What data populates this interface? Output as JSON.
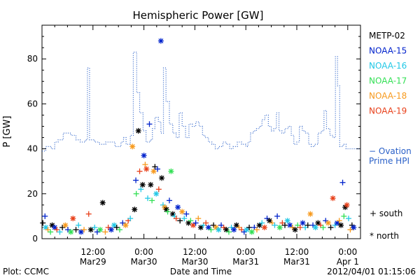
{
  "chart_data": {
    "type": "scatter",
    "title": "Hemispheric Power [GW]",
    "xlabel": "Date and Time",
    "ylabel": "P [GW]",
    "footer_left": "Plot: CCMC",
    "footer_right": "2012/04/01 01:15:06",
    "x_ticks": [
      {
        "t": 12,
        "top": "12:00",
        "bottom": "Mar29"
      },
      {
        "t": 24,
        "top": "0:00",
        "bottom": "Mar30"
      },
      {
        "t": 36,
        "top": "12:00",
        "bottom": "Mar30"
      },
      {
        "t": 48,
        "top": "0:00",
        "bottom": "Mar31"
      },
      {
        "t": 60,
        "top": "12:00",
        "bottom": "Mar31"
      },
      {
        "t": 72,
        "top": "0:00",
        "bottom": "Apr 1"
      }
    ],
    "xlim": [
      0,
      75
    ],
    "ylim": [
      0,
      95
    ],
    "y_ticks": [
      0,
      20,
      40,
      60,
      80
    ],
    "legend": [
      {
        "name": "METP-02",
        "color": "#000000"
      },
      {
        "name": "NOAA-15",
        "color": "#0022cc"
      },
      {
        "name": "NOAA-16",
        "color": "#22c8e6"
      },
      {
        "name": "NOAA-17",
        "color": "#33e055"
      },
      {
        "name": "NOAA-18",
        "color": "#f79a1e"
      },
      {
        "name": "NOAA-19",
        "color": "#e8401a"
      }
    ],
    "ovation_label_1": "− Ovation",
    "ovation_label_2": "Prime HPI",
    "marker_south": "+ south",
    "marker_north": "* north",
    "ovation_series": {
      "name": "Ovation Prime HPI",
      "color": "#2a60c8",
      "points": [
        [
          0,
          39
        ],
        [
          0.9,
          41
        ],
        [
          2.2,
          40
        ],
        [
          3,
          43
        ],
        [
          3.8,
          44
        ],
        [
          5,
          47
        ],
        [
          6.8,
          46
        ],
        [
          8,
          44
        ],
        [
          9,
          43
        ],
        [
          10.2,
          44
        ],
        [
          10.7,
          76
        ],
        [
          11.2,
          44
        ],
        [
          12.4,
          43
        ],
        [
          13.5,
          42
        ],
        [
          15,
          43
        ],
        [
          16,
          43
        ],
        [
          17.2,
          41
        ],
        [
          18,
          41
        ],
        [
          18.6,
          43
        ],
        [
          19.2,
          45
        ],
        [
          19.8,
          42
        ],
        [
          20.8,
          46
        ],
        [
          21.5,
          83
        ],
        [
          22.3,
          65
        ],
        [
          23,
          56
        ],
        [
          23.8,
          48
        ],
        [
          24.5,
          43
        ],
        [
          25.5,
          44
        ],
        [
          26,
          49
        ],
        [
          26.6,
          54
        ],
        [
          27.4,
          52
        ],
        [
          28,
          47
        ],
        [
          28.6,
          76
        ],
        [
          29.2,
          61
        ],
        [
          30,
          51
        ],
        [
          30.8,
          47
        ],
        [
          31.6,
          45
        ],
        [
          32.3,
          56
        ],
        [
          33,
          50
        ],
        [
          33.8,
          45
        ],
        [
          34.6,
          51
        ],
        [
          35.4,
          50
        ],
        [
          36.2,
          52
        ],
        [
          37,
          50
        ],
        [
          37.8,
          46
        ],
        [
          38.4,
          45
        ],
        [
          39.2,
          43
        ],
        [
          40,
          42
        ],
        [
          40.8,
          40
        ],
        [
          41.6,
          41
        ],
        [
          42.6,
          43
        ],
        [
          43.4,
          42
        ],
        [
          44.2,
          40
        ],
        [
          45,
          41
        ],
        [
          46,
          43
        ],
        [
          47,
          42
        ],
        [
          48,
          41
        ],
        [
          48.5,
          43
        ],
        [
          49.1,
          47
        ],
        [
          49.8,
          48
        ],
        [
          50.5,
          49
        ],
        [
          51.2,
          50
        ],
        [
          51.8,
          53
        ],
        [
          52.5,
          55
        ],
        [
          53.3,
          50
        ],
        [
          54,
          48
        ],
        [
          54.6,
          49
        ],
        [
          55.2,
          56
        ],
        [
          55.8,
          48
        ],
        [
          56.5,
          47
        ],
        [
          57.2,
          49
        ],
        [
          58,
          50
        ],
        [
          58.7,
          46
        ],
        [
          59.3,
          42
        ],
        [
          60,
          43
        ],
        [
          60.6,
          50
        ],
        [
          61.3,
          48
        ],
        [
          62,
          47
        ],
        [
          62.8,
          42
        ],
        [
          63.4,
          41
        ],
        [
          64.2,
          42
        ],
        [
          65,
          47
        ],
        [
          65.8,
          48
        ],
        [
          66.4,
          57
        ],
        [
          67,
          49
        ],
        [
          67.8,
          46
        ],
        [
          68.5,
          45
        ],
        [
          69.1,
          81
        ],
        [
          69.6,
          68
        ],
        [
          70.1,
          41
        ],
        [
          70.9,
          42
        ],
        [
          71.6,
          40
        ],
        [
          72.5,
          40
        ],
        [
          73.5,
          40
        ]
      ]
    },
    "observations": [
      {
        "sat": 0,
        "t": 0.2,
        "p": 7,
        "m": "+"
      },
      {
        "sat": 1,
        "t": 0.7,
        "p": 10,
        "m": "+"
      },
      {
        "sat": 2,
        "t": 0.9,
        "p": 5,
        "m": "*"
      },
      {
        "sat": 4,
        "t": 1.4,
        "p": 4,
        "m": "+"
      },
      {
        "sat": 3,
        "t": 2.0,
        "p": 3,
        "m": "+"
      },
      {
        "sat": 0,
        "t": 2.4,
        "p": 6,
        "m": "*"
      },
      {
        "sat": 1,
        "t": 3.0,
        "p": 5,
        "m": "*"
      },
      {
        "sat": 5,
        "t": 3.5,
        "p": 4,
        "m": "+"
      },
      {
        "sat": 2,
        "t": 4.2,
        "p": 3,
        "m": "+"
      },
      {
        "sat": 0,
        "t": 4.8,
        "p": 5,
        "m": "+"
      },
      {
        "sat": 4,
        "t": 5.5,
        "p": 6,
        "m": "*"
      },
      {
        "sat": 1,
        "t": 6.1,
        "p": 4,
        "m": "+"
      },
      {
        "sat": 3,
        "t": 6.8,
        "p": 3,
        "m": "*"
      },
      {
        "sat": 5,
        "t": 7.3,
        "p": 9,
        "m": "*"
      },
      {
        "sat": 0,
        "t": 8.0,
        "p": 4,
        "m": "+"
      },
      {
        "sat": 2,
        "t": 8.6,
        "p": 6,
        "m": "+"
      },
      {
        "sat": 1,
        "t": 9.2,
        "p": 3,
        "m": "*"
      },
      {
        "sat": 4,
        "t": 9.9,
        "p": 4,
        "m": "+"
      },
      {
        "sat": 5,
        "t": 11.0,
        "p": 11,
        "m": "+"
      },
      {
        "sat": 0,
        "t": 11.5,
        "p": 4,
        "m": "*"
      },
      {
        "sat": 2,
        "t": 12.4,
        "p": 5,
        "m": "+"
      },
      {
        "sat": 1,
        "t": 13.0,
        "p": 3,
        "m": "+"
      },
      {
        "sat": 3,
        "t": 13.7,
        "p": 4,
        "m": "*"
      },
      {
        "sat": 0,
        "t": 14.3,
        "p": 16,
        "m": "*"
      },
      {
        "sat": 4,
        "t": 14.9,
        "p": 3,
        "m": "+"
      },
      {
        "sat": 5,
        "t": 15.6,
        "p": 5,
        "m": "+"
      },
      {
        "sat": 1,
        "t": 16.3,
        "p": 4,
        "m": "*"
      },
      {
        "sat": 2,
        "t": 17.0,
        "p": 6,
        "m": "*"
      },
      {
        "sat": 0,
        "t": 17.6,
        "p": 5,
        "m": "+"
      },
      {
        "sat": 3,
        "t": 18.3,
        "p": 4,
        "m": "+"
      },
      {
        "sat": 1,
        "t": 19.0,
        "p": 7,
        "m": "+"
      },
      {
        "sat": 4,
        "t": 19.7,
        "p": 6,
        "m": "*"
      },
      {
        "sat": 5,
        "t": 20.3,
        "p": 8,
        "m": "+"
      },
      {
        "sat": 2,
        "t": 20.8,
        "p": 9,
        "m": "+"
      },
      {
        "sat": 4,
        "t": 21.3,
        "p": 41,
        "m": "*"
      },
      {
        "sat": 0,
        "t": 21.8,
        "p": 13,
        "m": "*"
      },
      {
        "sat": 1,
        "t": 22.1,
        "p": 26,
        "m": "+"
      },
      {
        "sat": 3,
        "t": 22.2,
        "p": 20,
        "m": "+"
      },
      {
        "sat": 0,
        "t": 22.7,
        "p": 48,
        "m": "*"
      },
      {
        "sat": 5,
        "t": 23.0,
        "p": 30,
        "m": "+"
      },
      {
        "sat": 2,
        "t": 23.3,
        "p": 22,
        "m": "+"
      },
      {
        "sat": 0,
        "t": 23.7,
        "p": 24,
        "m": "*"
      },
      {
        "sat": 1,
        "t": 24.0,
        "p": 37,
        "m": "*"
      },
      {
        "sat": 4,
        "t": 24.3,
        "p": 33,
        "m": "+"
      },
      {
        "sat": 5,
        "t": 24.6,
        "p": 31,
        "m": "*"
      },
      {
        "sat": 2,
        "t": 24.9,
        "p": 18,
        "m": "+"
      },
      {
        "sat": 1,
        "t": 25.3,
        "p": 51,
        "m": "+"
      },
      {
        "sat": 0,
        "t": 25.6,
        "p": 24,
        "m": "*"
      },
      {
        "sat": 3,
        "t": 25.9,
        "p": 17,
        "m": "+"
      },
      {
        "sat": 4,
        "t": 26.3,
        "p": 30,
        "m": "*"
      },
      {
        "sat": 0,
        "t": 26.6,
        "p": 32,
        "m": "+"
      },
      {
        "sat": 2,
        "t": 26.9,
        "p": 20,
        "m": "*"
      },
      {
        "sat": 1,
        "t": 27.2,
        "p": 31,
        "m": "+"
      },
      {
        "sat": 5,
        "t": 27.5,
        "p": 22,
        "m": "+"
      },
      {
        "sat": 1,
        "t": 28.0,
        "p": 88,
        "m": "*"
      },
      {
        "sat": 0,
        "t": 28.2,
        "p": 27,
        "m": "*"
      },
      {
        "sat": 2,
        "t": 28.5,
        "p": 15,
        "m": "+"
      },
      {
        "sat": 4,
        "t": 28.9,
        "p": 14,
        "m": "*"
      },
      {
        "sat": 0,
        "t": 29.3,
        "p": 13,
        "m": "*"
      },
      {
        "sat": 3,
        "t": 29.6,
        "p": 12,
        "m": "+"
      },
      {
        "sat": 1,
        "t": 30.0,
        "p": 17,
        "m": "+"
      },
      {
        "sat": 3,
        "t": 30.4,
        "p": 30,
        "m": "*"
      },
      {
        "sat": 0,
        "t": 30.8,
        "p": 11,
        "m": "*"
      },
      {
        "sat": 2,
        "t": 31.2,
        "p": 10,
        "m": "+"
      },
      {
        "sat": 5,
        "t": 31.6,
        "p": 9,
        "m": "+"
      },
      {
        "sat": 1,
        "t": 32.0,
        "p": 14,
        "m": "*"
      },
      {
        "sat": 0,
        "t": 32.5,
        "p": 8,
        "m": "+"
      },
      {
        "sat": 4,
        "t": 33.0,
        "p": 12,
        "m": "*"
      },
      {
        "sat": 2,
        "t": 33.5,
        "p": 9,
        "m": "+"
      },
      {
        "sat": 1,
        "t": 34.0,
        "p": 11,
        "m": "+"
      },
      {
        "sat": 0,
        "t": 34.5,
        "p": 7,
        "m": "*"
      },
      {
        "sat": 3,
        "t": 35.0,
        "p": 8,
        "m": "+"
      },
      {
        "sat": 5,
        "t": 35.6,
        "p": 6,
        "m": "*"
      },
      {
        "sat": 1,
        "t": 36.2,
        "p": 7,
        "m": "+"
      },
      {
        "sat": 4,
        "t": 36.8,
        "p": 9,
        "m": "+"
      },
      {
        "sat": 0,
        "t": 37.4,
        "p": 5,
        "m": "*"
      },
      {
        "sat": 2,
        "t": 38.0,
        "p": 6,
        "m": "+"
      },
      {
        "sat": 5,
        "t": 38.6,
        "p": 7,
        "m": "+"
      },
      {
        "sat": 1,
        "t": 39.2,
        "p": 5,
        "m": "*"
      },
      {
        "sat": 3,
        "t": 39.8,
        "p": 4,
        "m": "+"
      },
      {
        "sat": 0,
        "t": 40.4,
        "p": 6,
        "m": "+"
      },
      {
        "sat": 4,
        "t": 41.0,
        "p": 5,
        "m": "*"
      },
      {
        "sat": 2,
        "t": 41.6,
        "p": 4,
        "m": "*"
      },
      {
        "sat": 1,
        "t": 42.2,
        "p": 6,
        "m": "+"
      },
      {
        "sat": 5,
        "t": 42.8,
        "p": 5,
        "m": "+"
      },
      {
        "sat": 0,
        "t": 43.4,
        "p": 4,
        "m": "*"
      },
      {
        "sat": 3,
        "t": 44.0,
        "p": 3,
        "m": "+"
      },
      {
        "sat": 2,
        "t": 44.6,
        "p": 5,
        "m": "+"
      },
      {
        "sat": 1,
        "t": 45.2,
        "p": 4,
        "m": "*"
      },
      {
        "sat": 0,
        "t": 45.8,
        "p": 6,
        "m": "*"
      },
      {
        "sat": 4,
        "t": 46.4,
        "p": 5,
        "m": "+"
      },
      {
        "sat": 5,
        "t": 47.0,
        "p": 4,
        "m": "+"
      },
      {
        "sat": 1,
        "t": 47.6,
        "p": 3,
        "m": "+"
      },
      {
        "sat": 2,
        "t": 48.2,
        "p": 4,
        "m": "*"
      },
      {
        "sat": 0,
        "t": 48.8,
        "p": 5,
        "m": "+"
      },
      {
        "sat": 3,
        "t": 49.4,
        "p": 3,
        "m": "*"
      },
      {
        "sat": 1,
        "t": 50.0,
        "p": 5,
        "m": "+"
      },
      {
        "sat": 4,
        "t": 50.6,
        "p": 4,
        "m": "+"
      },
      {
        "sat": 0,
        "t": 51.2,
        "p": 6,
        "m": "*"
      },
      {
        "sat": 2,
        "t": 51.8,
        "p": 7,
        "m": "+"
      },
      {
        "sat": 5,
        "t": 52.4,
        "p": 5,
        "m": "*"
      },
      {
        "sat": 1,
        "t": 53.0,
        "p": 9,
        "m": "+"
      },
      {
        "sat": 0,
        "t": 53.6,
        "p": 8,
        "m": "*"
      },
      {
        "sat": 4,
        "t": 54.2,
        "p": 7,
        "m": "+"
      },
      {
        "sat": 2,
        "t": 54.8,
        "p": 6,
        "m": "+"
      },
      {
        "sat": 1,
        "t": 55.4,
        "p": 10,
        "m": "+"
      },
      {
        "sat": 3,
        "t": 56.0,
        "p": 5,
        "m": "*"
      },
      {
        "sat": 5,
        "t": 56.6,
        "p": 7,
        "m": "+"
      },
      {
        "sat": 0,
        "t": 57.2,
        "p": 6,
        "m": "+"
      },
      {
        "sat": 2,
        "t": 57.8,
        "p": 8,
        "m": "*"
      },
      {
        "sat": 1,
        "t": 58.4,
        "p": 6,
        "m": "*"
      },
      {
        "sat": 4,
        "t": 59.0,
        "p": 5,
        "m": "+"
      },
      {
        "sat": 0,
        "t": 59.6,
        "p": 4,
        "m": "*"
      },
      {
        "sat": 3,
        "t": 60.2,
        "p": 6,
        "m": "+"
      },
      {
        "sat": 5,
        "t": 60.8,
        "p": 5,
        "m": "+"
      },
      {
        "sat": 1,
        "t": 61.4,
        "p": 7,
        "m": "*"
      },
      {
        "sat": 2,
        "t": 62.0,
        "p": 5,
        "m": "+"
      },
      {
        "sat": 0,
        "t": 62.6,
        "p": 6,
        "m": "+"
      },
      {
        "sat": 4,
        "t": 63.2,
        "p": 11,
        "m": "*"
      },
      {
        "sat": 1,
        "t": 63.8,
        "p": 6,
        "m": "+"
      },
      {
        "sat": 2,
        "t": 64.4,
        "p": 5,
        "m": "*"
      },
      {
        "sat": 0,
        "t": 65.0,
        "p": 7,
        "m": "*"
      },
      {
        "sat": 5,
        "t": 65.6,
        "p": 6,
        "m": "+"
      },
      {
        "sat": 3,
        "t": 66.2,
        "p": 5,
        "m": "+"
      },
      {
        "sat": 1,
        "t": 66.8,
        "p": 8,
        "m": "+"
      },
      {
        "sat": 4,
        "t": 67.4,
        "p": 7,
        "m": "*"
      },
      {
        "sat": 0,
        "t": 68.0,
        "p": 5,
        "m": "+"
      },
      {
        "sat": 5,
        "t": 68.5,
        "p": 18,
        "m": "*"
      },
      {
        "sat": 2,
        "t": 69.0,
        "p": 6,
        "m": "+"
      },
      {
        "sat": 1,
        "t": 69.5,
        "p": 7,
        "m": "*"
      },
      {
        "sat": 4,
        "t": 70.0,
        "p": 8,
        "m": "+"
      },
      {
        "sat": 0,
        "t": 70.4,
        "p": 6,
        "m": "*"
      },
      {
        "sat": 1,
        "t": 70.8,
        "p": 25,
        "m": "+"
      },
      {
        "sat": 3,
        "t": 71.1,
        "p": 10,
        "m": "+"
      },
      {
        "sat": 0,
        "t": 71.4,
        "p": 14,
        "m": "*"
      },
      {
        "sat": 5,
        "t": 71.8,
        "p": 15,
        "m": "*"
      },
      {
        "sat": 2,
        "t": 72.2,
        "p": 9,
        "m": "+"
      },
      {
        "sat": 4,
        "t": 72.6,
        "p": 4,
        "m": "+"
      },
      {
        "sat": 0,
        "t": 73.0,
        "p": 6,
        "m": "+"
      },
      {
        "sat": 1,
        "t": 73.4,
        "p": 5,
        "m": "*"
      }
    ]
  }
}
